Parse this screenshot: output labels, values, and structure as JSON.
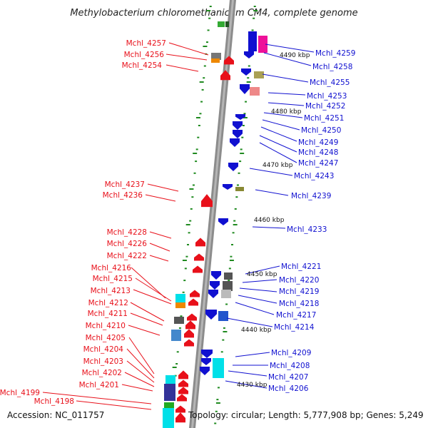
{
  "title": "Methylobacterium chloromethanicum CM4, complete genome",
  "footer": {
    "accession": "Accession: NC_011757",
    "summary": "Topology: circular; Length: 5,777,908 bp; Genes: 5,249"
  },
  "colors": {
    "forward_strand": "#e8101a",
    "reverse_strand": "#1010d0",
    "backbone": "#8c8c8c",
    "tick": "#1f8a1f"
  },
  "scale_labels": [
    "4490 kbp",
    "4480 kbp",
    "4470 kbp",
    "4460 kbp",
    "4450 kbp",
    "4440 kbp",
    "4430 kbp"
  ],
  "left_labels": [
    "Mchl_4257",
    "Mchl_4256",
    "Mchl_4254",
    "Mchl_4237",
    "Mchl_4236",
    "Mchl_4228",
    "Mchl_4226",
    "Mchl_4222",
    "Mchl_4216",
    "Mchl_4215",
    "Mchl_4213",
    "Mchl_4212",
    "Mchl_4211",
    "Mchl_4210",
    "Mchl_4205",
    "Mchl_4204",
    "Mchl_4203",
    "Mchl_4202",
    "Mchl_4201",
    "Mchl_4199",
    "Mchl_4198"
  ],
  "right_labels": [
    "Mchl_4259",
    "Mchl_4258",
    "Mchl_4255",
    "Mchl_4253",
    "Mchl_4252",
    "Mchl_4251",
    "Mchl_4250",
    "Mchl_4249",
    "Mchl_4248",
    "Mchl_4247",
    "Mchl_4243",
    "Mchl_4239",
    "Mchl_4233",
    "Mchl_4221",
    "Mchl_4220",
    "Mchl_4219",
    "Mchl_4218",
    "Mchl_4217",
    "Mchl_4214",
    "Mchl_4209",
    "Mchl_4208",
    "Mchl_4207",
    "Mchl_4206"
  ]
}
